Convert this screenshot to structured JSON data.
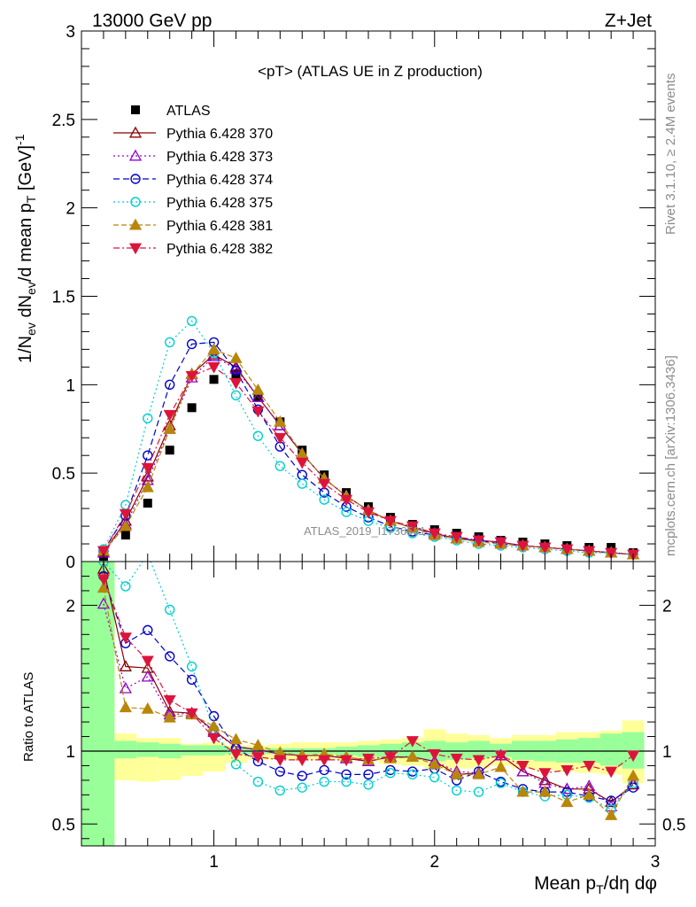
{
  "header": {
    "energy": "13000 GeV pp",
    "process": "Z+Jet",
    "plot_title": "<pT> (ATLAS UE in Z production)",
    "watermark": "ATLAS_2019_I1736531",
    "side_rivet": "Rivet 3.1.10, ≥ 2.4M events",
    "side_mcplots": "mcplots.cern.ch [arXiv:1306.3436]"
  },
  "chart_data": [
    {
      "type": "line",
      "xlim": [
        0.4,
        3.0
      ],
      "ylim": [
        0,
        3.0
      ],
      "xticks": [
        "1",
        "2",
        "3"
      ],
      "yticks": [
        "0",
        "0.5",
        "1",
        "1.5",
        "2",
        "2.5",
        "3"
      ],
      "ylabel": "1/N_ev dN_ev/d mean p_T [GeV]^-1",
      "x": [
        0.5,
        0.6,
        0.7,
        0.8,
        0.9,
        1.0,
        1.1,
        1.2,
        1.3,
        1.4,
        1.5,
        1.6,
        1.7,
        1.8,
        1.9,
        2.0,
        2.1,
        2.2,
        2.3,
        2.4,
        2.5,
        2.6,
        2.7,
        2.8,
        2.9
      ],
      "series": [
        {
          "name": "ATLAS",
          "color": "#000000",
          "marker": "square",
          "dash": "none",
          "values": [
            0.03,
            0.15,
            0.33,
            0.63,
            0.87,
            1.03,
            1.06,
            0.93,
            0.79,
            0.63,
            0.49,
            0.39,
            0.31,
            0.25,
            0.21,
            0.18,
            0.16,
            0.14,
            0.12,
            0.11,
            0.1,
            0.09,
            0.08,
            0.08,
            0.05
          ]
        },
        {
          "name": "Pythia 6.428 370",
          "color": "#8b0000",
          "marker": "triangle-open",
          "dash": "solid",
          "values": [
            0.05,
            0.23,
            0.48,
            0.77,
            1.06,
            1.17,
            1.1,
            0.93,
            0.77,
            0.61,
            0.47,
            0.37,
            0.29,
            0.23,
            0.19,
            0.16,
            0.13,
            0.12,
            0.11,
            0.09,
            0.08,
            0.07,
            0.06,
            0.05,
            0.04
          ]
        },
        {
          "name": "Pythia 6.428 373",
          "color": "#9400d3",
          "marker": "triangle-open",
          "dash": "2,3",
          "values": [
            0.05,
            0.21,
            0.46,
            0.75,
            1.04,
            1.16,
            1.09,
            0.93,
            0.77,
            0.61,
            0.47,
            0.37,
            0.29,
            0.23,
            0.19,
            0.16,
            0.13,
            0.12,
            0.11,
            0.09,
            0.08,
            0.07,
            0.06,
            0.05,
            0.04
          ]
        },
        {
          "name": "Pythia 6.428 374",
          "color": "#0000cd",
          "marker": "circle-open",
          "dash": "7,4",
          "values": [
            0.06,
            0.26,
            0.6,
            1.0,
            1.23,
            1.24,
            1.08,
            0.86,
            0.65,
            0.49,
            0.39,
            0.31,
            0.25,
            0.2,
            0.17,
            0.15,
            0.13,
            0.12,
            0.1,
            0.09,
            0.08,
            0.07,
            0.06,
            0.05,
            0.04
          ]
        },
        {
          "name": "Pythia 6.428 375",
          "color": "#00ced1",
          "marker": "circle-open",
          "dash": "2,3",
          "values": [
            0.07,
            0.32,
            0.81,
            1.24,
            1.36,
            1.18,
            0.94,
            0.71,
            0.54,
            0.44,
            0.35,
            0.28,
            0.23,
            0.19,
            0.16,
            0.14,
            0.12,
            0.1,
            0.09,
            0.08,
            0.07,
            0.06,
            0.05,
            0.05,
            0.04
          ]
        },
        {
          "name": "Pythia 6.428 381",
          "color": "#b8860b",
          "marker": "triangle-filled",
          "dash": "6,3",
          "values": [
            0.06,
            0.2,
            0.42,
            0.75,
            1.06,
            1.2,
            1.15,
            0.97,
            0.79,
            0.61,
            0.47,
            0.37,
            0.29,
            0.23,
            0.19,
            0.15,
            0.13,
            0.11,
            0.1,
            0.09,
            0.08,
            0.07,
            0.06,
            0.05,
            0.04
          ]
        },
        {
          "name": "Pythia 6.428 382",
          "color": "#dc143c",
          "marker": "triangle-down-filled",
          "dash": "7,3,2,3",
          "values": [
            0.06,
            0.27,
            0.53,
            0.83,
            1.05,
            1.1,
            1.01,
            0.85,
            0.7,
            0.56,
            0.44,
            0.35,
            0.28,
            0.23,
            0.2,
            0.16,
            0.14,
            0.12,
            0.11,
            0.09,
            0.08,
            0.07,
            0.06,
            0.05,
            0.04
          ]
        }
      ]
    },
    {
      "type": "line",
      "xlim": [
        0.4,
        3.0
      ],
      "ylim": [
        0.35,
        2.3
      ],
      "xticks": [
        "1",
        "2",
        "3"
      ],
      "yticks": [
        "0.5",
        "1",
        "2"
      ],
      "ylabel": "Ratio to ATLAS",
      "xlabel": "Mean p_T/dη dφ",
      "band_edges": [
        0.45,
        0.55,
        0.65,
        0.75,
        0.85,
        0.95,
        1.05,
        1.15,
        1.25,
        1.35,
        1.45,
        1.55,
        1.65,
        1.75,
        1.85,
        1.95,
        2.05,
        2.15,
        2.25,
        2.35,
        2.45,
        2.55,
        2.65,
        2.75,
        2.85,
        2.95
      ],
      "band_yellow": [
        [
          0.35,
          2.3
        ],
        [
          0.8,
          1.12
        ],
        [
          0.79,
          1.09
        ],
        [
          0.8,
          1.09
        ],
        [
          0.83,
          1.05
        ],
        [
          0.86,
          1.06
        ],
        [
          0.92,
          1.04
        ],
        [
          0.94,
          1.04
        ],
        [
          0.94,
          1.05
        ],
        [
          0.94,
          1.06
        ],
        [
          0.94,
          1.06
        ],
        [
          0.94,
          1.06
        ],
        [
          0.93,
          1.07
        ],
        [
          0.91,
          1.08
        ],
        [
          0.9,
          1.09
        ],
        [
          0.88,
          1.15
        ],
        [
          0.88,
          1.12
        ],
        [
          0.88,
          1.11
        ],
        [
          0.9,
          1.09
        ],
        [
          0.88,
          1.11
        ],
        [
          0.87,
          1.11
        ],
        [
          0.86,
          1.13
        ],
        [
          0.85,
          1.13
        ],
        [
          0.84,
          1.14
        ],
        [
          0.78,
          1.21
        ]
      ],
      "band_green": [
        [
          0.35,
          2.3
        ],
        [
          0.95,
          1.07
        ],
        [
          0.96,
          1.06
        ],
        [
          0.95,
          1.05
        ],
        [
          0.97,
          1.04
        ],
        [
          0.97,
          1.04
        ],
        [
          0.98,
          1.03
        ],
        [
          0.98,
          1.02
        ],
        [
          0.98,
          1.02
        ],
        [
          0.98,
          1.02
        ],
        [
          0.98,
          1.02
        ],
        [
          0.97,
          1.03
        ],
        [
          0.96,
          1.04
        ],
        [
          0.95,
          1.05
        ],
        [
          0.95,
          1.06
        ],
        [
          0.93,
          1.07
        ],
        [
          0.94,
          1.06
        ],
        [
          0.95,
          1.07
        ],
        [
          0.96,
          1.05
        ],
        [
          0.94,
          1.07
        ],
        [
          0.93,
          1.07
        ],
        [
          0.92,
          1.08
        ],
        [
          0.92,
          1.09
        ],
        [
          0.9,
          1.12
        ],
        [
          0.88,
          1.13
        ]
      ],
      "series": [
        {
          "name": "Pythia 6.428 370",
          "values": [
            2.25,
            1.58,
            1.57,
            1.27,
            1.26,
            1.14,
            1.03,
            1.01,
            0.98,
            0.97,
            0.97,
            0.95,
            0.93,
            0.96,
            0.96,
            0.93,
            0.84,
            0.85,
            0.97,
            0.86,
            0.8,
            0.74,
            0.74,
            0.65,
            0.77
          ]
        },
        {
          "name": "Pythia 6.428 373",
          "values": [
            2.01,
            1.43,
            1.51,
            1.25,
            1.26,
            1.13,
            1.03,
            1.01,
            0.98,
            0.97,
            0.97,
            0.95,
            0.93,
            0.96,
            0.96,
            0.93,
            0.86,
            0.85,
            0.97,
            0.86,
            0.78,
            0.74,
            0.76,
            0.62,
            0.78
          ]
        },
        {
          "name": "Pythia 6.428 374",
          "values": [
            2.2,
            1.74,
            1.83,
            1.65,
            1.49,
            1.24,
            1.02,
            0.93,
            0.86,
            0.83,
            0.87,
            0.84,
            0.84,
            0.87,
            0.86,
            0.88,
            0.8,
            0.86,
            0.79,
            0.74,
            0.72,
            0.72,
            0.69,
            0.66,
            0.75
          ]
        },
        {
          "name": "Pythia 6.428 375",
          "values": [
            2.3,
            2.13,
            2.35,
            1.97,
            1.58,
            1.15,
            0.91,
            0.79,
            0.73,
            0.75,
            0.79,
            0.79,
            0.77,
            0.85,
            0.84,
            0.82,
            0.73,
            0.72,
            0.78,
            0.72,
            0.69,
            0.7,
            0.68,
            0.6,
            0.78
          ]
        },
        {
          "name": "Pythia 6.428 381",
          "values": [
            2.12,
            1.3,
            1.29,
            1.23,
            1.25,
            1.17,
            1.08,
            1.04,
            0.99,
            0.97,
            0.98,
            0.96,
            0.94,
            0.95,
            0.96,
            0.91,
            0.84,
            0.84,
            0.89,
            0.72,
            0.72,
            0.65,
            0.7,
            0.56,
            0.83
          ]
        },
        {
          "name": "Pythia 6.428 382",
          "values": [
            2.18,
            1.78,
            1.62,
            1.35,
            1.26,
            1.09,
            0.98,
            0.96,
            0.94,
            0.94,
            0.94,
            0.94,
            0.95,
            0.96,
            1.07,
            0.98,
            0.95,
            0.94,
            0.97,
            0.9,
            0.85,
            0.87,
            0.9,
            0.86,
            0.97
          ]
        }
      ]
    }
  ]
}
